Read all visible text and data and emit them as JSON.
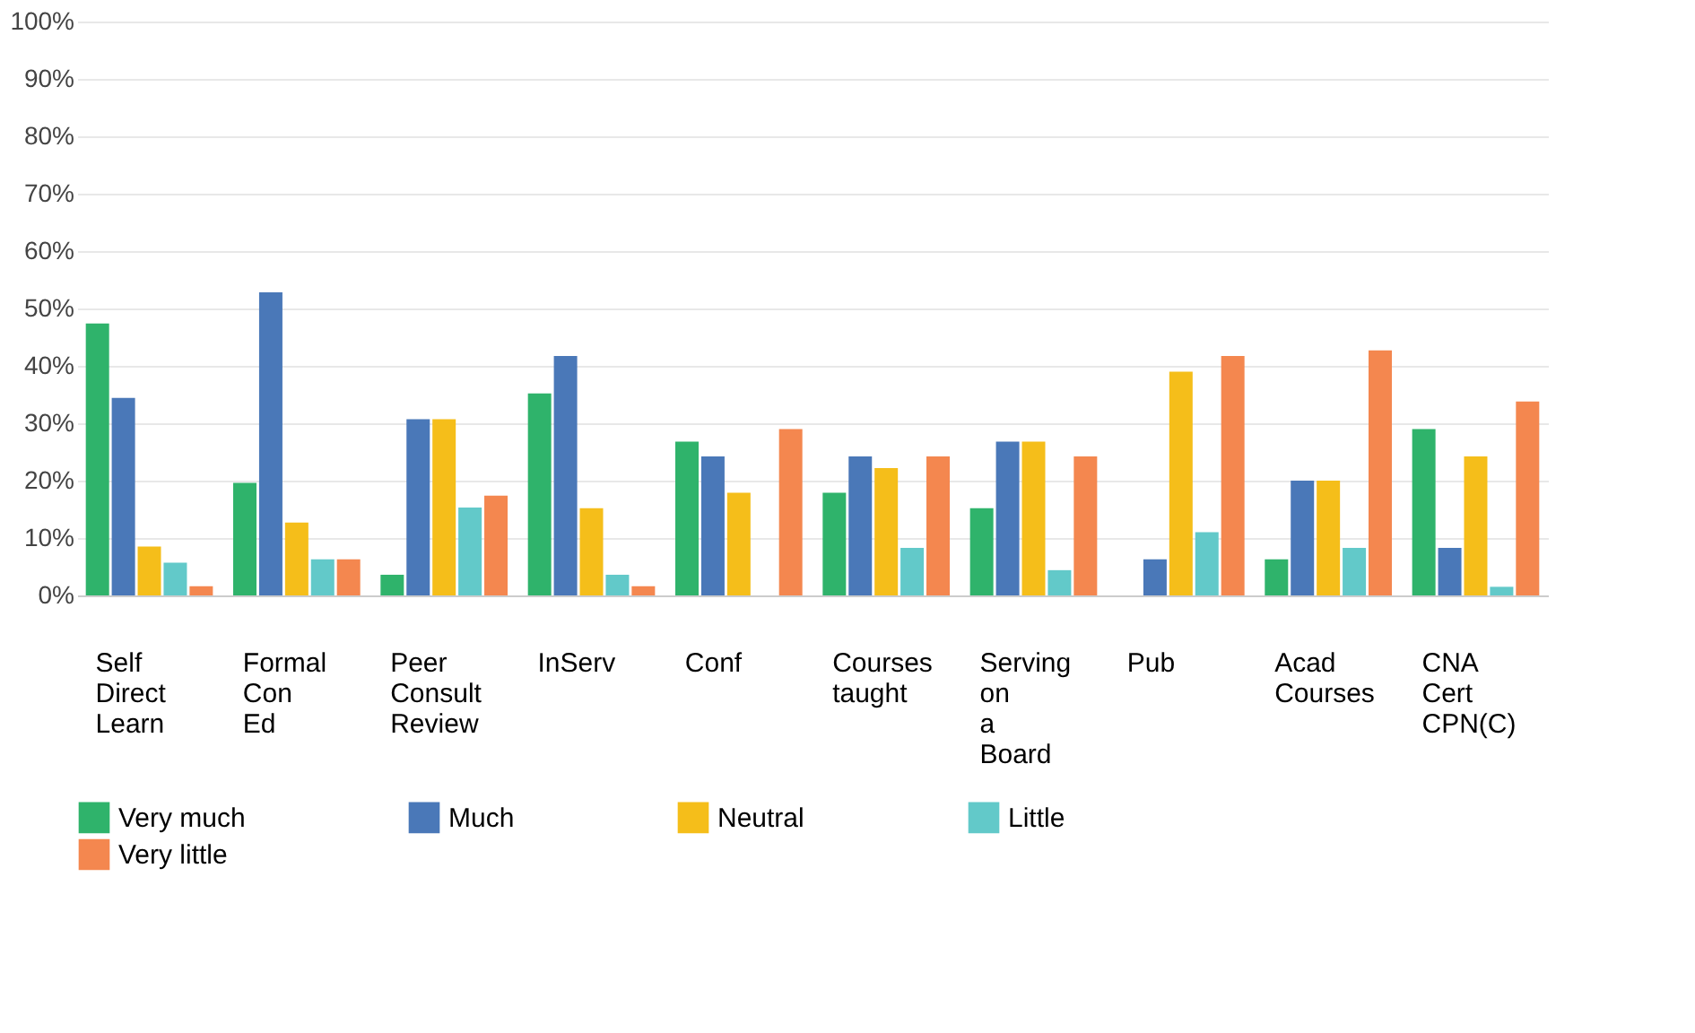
{
  "chart_data": {
    "type": "bar",
    "categories": [
      "Self Direct Learn",
      "Formal Con Ed",
      "Peer Consult Review",
      "InServ",
      "Conf",
      "Courses taught",
      "Serving on a Board",
      "Pub",
      "Acad Courses",
      "CNA Cert CPN(C)"
    ],
    "series": [
      {
        "name": "Very much",
        "color": "#2fb36b",
        "values": [
          47.4,
          19.6,
          3.6,
          35.2,
          26.8,
          17.9,
          15.2,
          0,
          6.3,
          29
        ]
      },
      {
        "name": "Much",
        "color": "#4a78b8",
        "values": [
          34.4,
          52.8,
          30.7,
          41.7,
          24.2,
          24.2,
          26.8,
          6.3,
          20,
          8.3
        ]
      },
      {
        "name": "Neutral",
        "color": "#f5be1a",
        "values": [
          8.5,
          12.7,
          30.7,
          15.2,
          17.9,
          22.2,
          26.8,
          39,
          20,
          24.2
        ]
      },
      {
        "name": "Little",
        "color": "#62c9c9",
        "values": [
          5.7,
          6.3,
          15.3,
          3.6,
          0,
          8.3,
          4.4,
          11,
          8.3,
          1.5
        ]
      },
      {
        "name": "Very little",
        "color": "#f4874f",
        "values": [
          1.6,
          6.3,
          17.4,
          1.6,
          29,
          24.2,
          24.2,
          41.7,
          42.7,
          33.8
        ]
      }
    ],
    "ylim": [
      0,
      100
    ],
    "yticks": [
      {
        "value": 0,
        "label": "0%"
      },
      {
        "value": 10,
        "label": "10%"
      },
      {
        "value": 20,
        "label": "20%"
      },
      {
        "value": 30,
        "label": "30%"
      },
      {
        "value": 40,
        "label": "40%"
      },
      {
        "value": 50,
        "label": "50%"
      },
      {
        "value": 60,
        "label": "60%"
      },
      {
        "value": 70,
        "label": "70%"
      },
      {
        "value": 80,
        "label": "80%"
      },
      {
        "value": 90,
        "label": "90%"
      },
      {
        "value": 100,
        "label": "100%"
      }
    ],
    "grid": "y",
    "legend": "bottom"
  }
}
